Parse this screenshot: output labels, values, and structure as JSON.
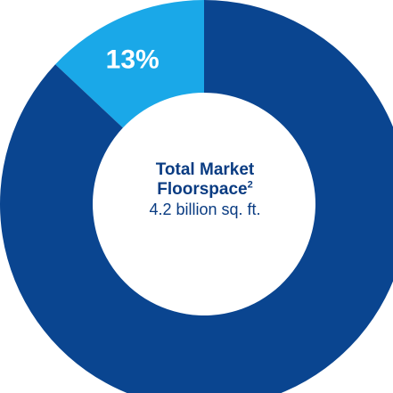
{
  "chart_data": {
    "type": "pie",
    "donut": true,
    "slices": [
      {
        "label": "13%",
        "value": 13,
        "color": "#1aa8e8"
      },
      {
        "label": "",
        "value": 87,
        "color": "#0a4590"
      }
    ],
    "center": {
      "title_line1": "Total Market",
      "title_line2": "Floorspace",
      "title_superscript": "2",
      "value": "4.2 billion sq. ft."
    }
  }
}
